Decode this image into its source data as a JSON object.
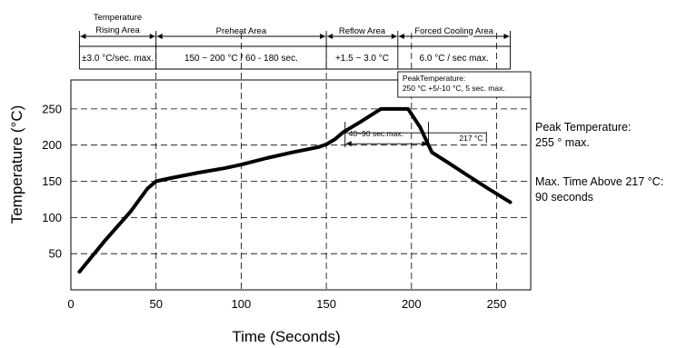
{
  "chart_data": {
    "type": "line",
    "xlabel": "Time (Seconds)",
    "ylabel": "Temperature (°C)",
    "xlim": [
      0,
      270
    ],
    "ylim": [
      0,
      290
    ],
    "xticks": [
      0,
      50,
      100,
      150,
      200,
      250
    ],
    "yticks": [
      50,
      100,
      150,
      200,
      250
    ],
    "grid": true,
    "series": [
      {
        "x": [
          5,
          20,
          35,
          45,
          50,
          60,
          75,
          90,
          100,
          115,
          130,
          145,
          150,
          155,
          160,
          165,
          170,
          182,
          188,
          198,
          205,
          212,
          222,
          235,
          245,
          258
        ],
        "y": [
          25,
          68,
          108,
          140,
          150,
          155,
          162,
          168,
          173,
          182,
          190,
          197,
          201,
          208,
          218,
          225,
          232,
          250,
          250,
          250,
          225,
          190,
          175,
          155,
          140,
          121
        ]
      }
    ],
    "zones": [
      {
        "x_start": 5,
        "x_end": 50,
        "name_lines": [
          "Temperature",
          "Rising Area"
        ],
        "spec": "±3.0 °C/sec. max."
      },
      {
        "x_start": 50,
        "x_end": 150,
        "name_lines": [
          "Preheat Area"
        ],
        "spec": "150 ~ 200 °C / 60 - 180 sec."
      },
      {
        "x_start": 150,
        "x_end": 192,
        "name_lines": [
          "Reflow Area"
        ],
        "spec": "+1.5 ~ 3.0 °C"
      },
      {
        "x_start": 192,
        "x_end": 258,
        "name_lines": [
          "Forced Cooling Area"
        ],
        "spec": "6.0 °C / sec max."
      }
    ],
    "annotations": {
      "peak_box": [
        "PeakTemperature:",
        "250 °C +5/-10 °C, 5 sec. max."
      ],
      "time_above": {
        "label": "40~90 sec.max.",
        "x_start": 161,
        "x_end": 210,
        "y": 217
      },
      "threshold": {
        "label": "217 °C",
        "y": 217
      }
    },
    "side_notes": [
      [
        "Peak Temperature:",
        "255 ° max."
      ],
      [
        "Max. Time Above 217 °C:",
        "90 seconds"
      ]
    ]
  }
}
